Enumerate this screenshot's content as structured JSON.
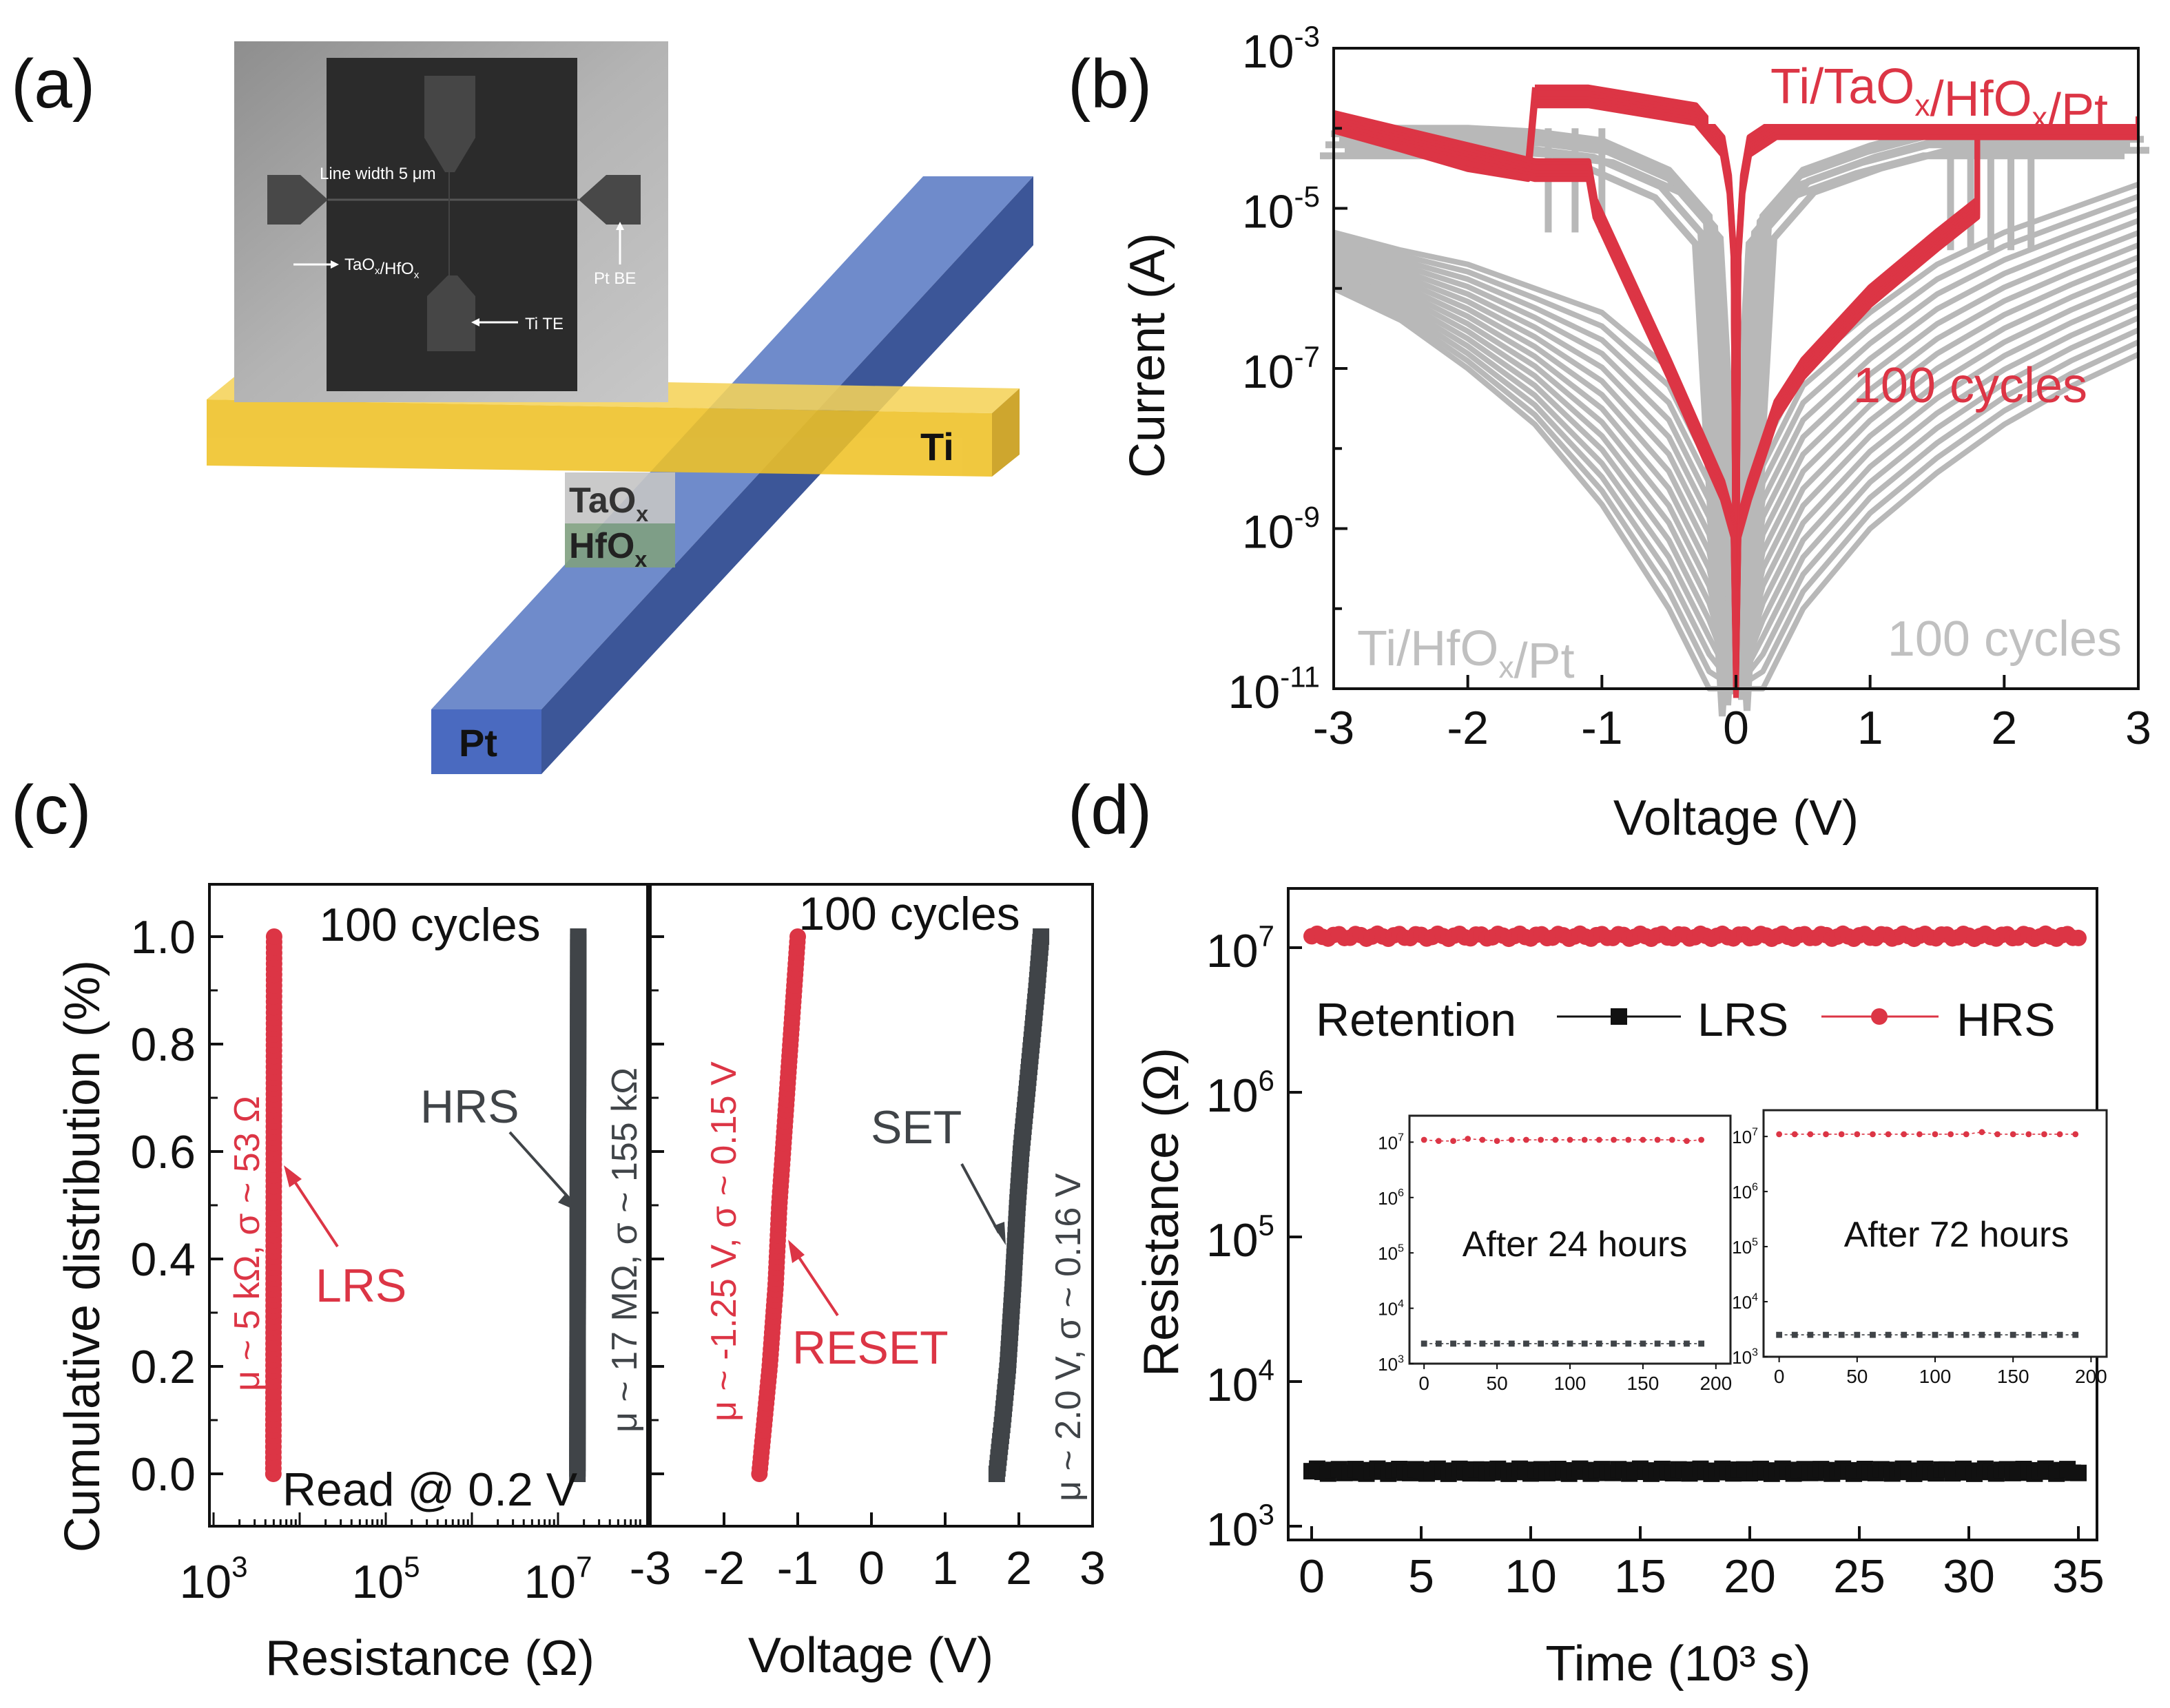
{
  "panel_labels": {
    "a": "(a)",
    "b": "(b)",
    "c": "(c)",
    "d": "(d)"
  },
  "panel_a": {
    "sem_inset": {
      "line_width": "Line width 5 μm",
      "stack": "TaOx/HfOx",
      "bottom_electrode": "Pt BE",
      "top_electrode": "Ti TE"
    },
    "device": {
      "top_electrode": "Ti",
      "bottom_electrode": "Pt",
      "layer_top": "TaOx",
      "layer_bottom": "HfOx"
    },
    "colors": {
      "ti": "#f0c020",
      "pt": "#4a6ac0",
      "taox": "#c4c4c4",
      "hfox": "#7fa07f"
    }
  },
  "colors": {
    "red": "#dc3545",
    "gray": "#b8b8b8",
    "dark": "#404448",
    "black": "#111111"
  },
  "chart_data": [
    {
      "id": "b",
      "type": "line",
      "xlabel": "Voltage (V)",
      "ylabel": "Current (A)",
      "xlim": [
        -3,
        3
      ],
      "ylim": [
        1e-11,
        0.001
      ],
      "yscale": "log",
      "xticks": [
        -3,
        -2,
        -1,
        0,
        1,
        2,
        3
      ],
      "yticks_exponents": [
        -3,
        -5,
        -7,
        -9,
        -11
      ],
      "annotations": {
        "red_device": "Ti/TaOx/HfOx/Pt",
        "red_cycles": "100 cycles",
        "gray_device": "Ti/HfOx/Pt",
        "gray_cycles": "100 cycles"
      },
      "series": [
        {
          "group": "Ti/TaOx/HfOx/Pt",
          "color": "red",
          "x": [
            0,
            0.02,
            0.1,
            0.3,
            0.5,
            1.0,
            1.5,
            1.8,
            1.8,
            2.0,
            3.0
          ],
          "y": [
            1e-11,
            1e-09,
            3e-09,
            3e-08,
            1e-07,
            8e-07,
            4e-06,
            1e-05,
            0.0001,
            0.0001,
            0.0001
          ]
        },
        {
          "group": "Ti/TaOx/HfOx/Pt",
          "color": "red",
          "x": [
            3.0,
            0.3,
            0.1,
            0.05,
            0.02,
            0
          ],
          "y": [
            0.0001,
            0.0001,
            6e-05,
            2e-05,
            3e-06,
            1e-11
          ]
        },
        {
          "group": "Ti/TaOx/HfOx/Pt",
          "color": "red",
          "x": [
            0,
            -0.02,
            -0.05,
            -0.1,
            -0.3,
            -1.1,
            -1.5
          ],
          "y": [
            1e-11,
            3e-06,
            2e-05,
            6e-05,
            0.00015,
            0.00025,
            0.00025
          ]
        },
        {
          "group": "Ti/TaOx/HfOx/Pt",
          "color": "red",
          "x": [
            -1.5,
            -1.55,
            -2.0,
            -2.5,
            -3.0
          ],
          "y": [
            0.00025,
            3e-05,
            4e-05,
            7e-05,
            0.00012
          ]
        },
        {
          "group": "Ti/TaOx/HfOx/Pt",
          "color": "red",
          "x": [
            -3.0,
            -1.5,
            -1.1,
            -1.05,
            -0.5,
            -0.1,
            -0.02,
            0
          ],
          "y": [
            0.00012,
            3e-05,
            3e-05,
            1e-05,
            1e-07,
            3e-09,
            1e-09,
            1e-11
          ]
        },
        {
          "group": "Ti/HfOx/Pt",
          "color": "gray",
          "x": [
            -3,
            -2.5,
            -2,
            -1.5,
            -1,
            -0.5,
            -0.2,
            0,
            0.2,
            0.5,
            1,
            1.5,
            2,
            2.5,
            3
          ],
          "y": [
            0.0001,
            0.0001,
            0.0001,
            9e-05,
            7e-05,
            3e-05,
            8e-06,
            1e-11,
            8e-06,
            3e-05,
            6e-05,
            0.0001,
            0.0001,
            0.0001,
            0.0001
          ]
        },
        {
          "group": "Ti/HfOx/Pt",
          "color": "gray",
          "x": [
            -3,
            -2.5,
            -2,
            -1.5,
            -1,
            -0.5,
            -0.2,
            0,
            0.2,
            0.5,
            1,
            1.5,
            2,
            2.5,
            3
          ],
          "y": [
            5e-06,
            3e-06,
            2e-06,
            1e-06,
            5e-07,
            1e-07,
            1e-08,
            1e-11,
            1e-08,
            1e-07,
            5e-07,
            2e-06,
            5e-06,
            1e-05,
            2e-05
          ]
        },
        {
          "group": "Ti/HfOx/Pt",
          "color": "gray",
          "x": [
            -3,
            -2.5,
            -2,
            -1.5,
            -1,
            -0.5,
            -0.2,
            0,
            0.2,
            0.5,
            1,
            1.5,
            2,
            2.5,
            3
          ],
          "y": [
            1e-06,
            4e-07,
            1e-07,
            2e-08,
            2e-09,
            1e-10,
            1e-11,
            1e-11,
            1e-11,
            1e-10,
            1e-09,
            5e-09,
            2e-08,
            6e-08,
            1.5e-07
          ]
        }
      ]
    },
    {
      "id": "c-left",
      "type": "scatter",
      "xlabel": "Resistance (Ω)",
      "ylabel": "Cumulative distribution (%)",
      "xscale": "log",
      "xlim": [
        1000.0,
        100000000.0
      ],
      "ylim": [
        -0.1,
        1.1
      ],
      "xticks_exponents": [
        3,
        5,
        7
      ],
      "yticks": [
        "0.0",
        "0.2",
        "0.4",
        "0.6",
        "0.8",
        "1.0"
      ],
      "annotations": {
        "cycles": "100 cycles",
        "read": "Read @ 0.2 V",
        "lrs": "LRS",
        "hrs": "HRS",
        "lrs_stats": "μ ~ 5 kΩ,  σ ~ 53 Ω",
        "hrs_stats": "μ ~ 17 MΩ,  σ ~ 155 kΩ"
      },
      "series": [
        {
          "name": "LRS",
          "color": "red",
          "x": [
            4950,
            5050
          ],
          "y": [
            0,
            1
          ]
        },
        {
          "name": "HRS",
          "color": "dark",
          "x": [
            16800000,
            17200000
          ],
          "y": [
            0,
            1
          ]
        }
      ]
    },
    {
      "id": "c-right",
      "type": "scatter",
      "xlabel": "Voltage (V)",
      "xlim": [
        -3,
        3
      ],
      "ylim": [
        -0.1,
        1.1
      ],
      "xticks": [
        -3,
        -2,
        -1,
        0,
        1,
        2,
        3
      ],
      "annotations": {
        "cycles": "100 cycles",
        "reset": "RESET",
        "set": "SET",
        "reset_stats": "μ ~ -1.25 V, σ ~ 0.15 V",
        "set_stats": "μ ~ 2.0 V, σ ~ 0.16 V"
      },
      "series": [
        {
          "name": "RESET",
          "color": "red",
          "x": [
            -1.52,
            -1.45,
            -1.38,
            -1.3,
            -1.25,
            -1.2,
            -1.15,
            -1.1,
            -1.05,
            -1.0
          ],
          "y": [
            0,
            0.1,
            0.2,
            0.35,
            0.5,
            0.6,
            0.7,
            0.8,
            0.9,
            1.0
          ]
        },
        {
          "name": "SET",
          "color": "dark",
          "x": [
            1.7,
            1.78,
            1.85,
            1.92,
            1.98,
            2.03,
            2.1,
            2.17,
            2.24,
            2.3
          ],
          "y": [
            0,
            0.1,
            0.2,
            0.35,
            0.5,
            0.6,
            0.7,
            0.8,
            0.9,
            1.0
          ]
        }
      ]
    },
    {
      "id": "d",
      "type": "line",
      "xlabel": "Time (10³ s)",
      "ylabel": "Resistance (Ω)",
      "xlim": [
        0,
        35
      ],
      "ylim": [
        1000.0,
        30000000.0
      ],
      "yscale": "log",
      "xticks": [
        0,
        5,
        10,
        15,
        20,
        25,
        30,
        35
      ],
      "yticks_exponents": [
        3,
        4,
        5,
        6,
        7
      ],
      "legend": {
        "title": "Retention",
        "entries": [
          "LRS",
          "HRS"
        ],
        "placement": "top"
      },
      "series": [
        {
          "name": "LRS",
          "color": "black",
          "marker": "square",
          "x": [
            0,
            35
          ],
          "y": [
            2400,
            2400
          ]
        },
        {
          "name": "HRS",
          "color": "red",
          "marker": "circle",
          "x": [
            0,
            35
          ],
          "y": [
            12000000,
            12000000
          ]
        }
      ]
    },
    {
      "id": "d-inset-24h",
      "type": "line",
      "title": "After 24 hours",
      "xlim": [
        -10,
        210
      ],
      "ylim": [
        1000.0,
        30000000.0
      ],
      "yscale": "log",
      "xticks": [
        0,
        50,
        100,
        150,
        200
      ],
      "yticks_exponents": [
        3,
        4,
        5,
        6,
        7
      ],
      "series": [
        {
          "name": "HRS",
          "color": "red",
          "marker": "circle",
          "x": [
            0,
            10,
            20,
            30,
            40,
            50,
            60,
            70,
            80,
            90,
            100,
            110,
            120,
            130,
            140,
            150,
            160,
            170,
            180,
            190
          ],
          "y": [
            11000000.0,
            10500000.0,
            10500000.0,
            11500000.0,
            11000000.0,
            10500000.0,
            11000000.0,
            11000000.0,
            11000000.0,
            11000000.0,
            11000000.0,
            11000000.0,
            11000000.0,
            11000000.0,
            11000000.0,
            11000000.0,
            11000000.0,
            11000000.0,
            10500000.0,
            11000000.0
          ]
        },
        {
          "name": "LRS",
          "color": "dark",
          "marker": "square",
          "x": [
            0,
            10,
            20,
            30,
            40,
            50,
            60,
            70,
            80,
            90,
            100,
            110,
            120,
            130,
            140,
            150,
            160,
            170,
            180,
            190
          ],
          "y": [
            2300,
            2300,
            2300,
            2300,
            2300,
            2300,
            2300,
            2300,
            2300,
            2300,
            2300,
            2300,
            2300,
            2300,
            2300,
            2300,
            2300,
            2300,
            2300,
            2300
          ]
        }
      ]
    },
    {
      "id": "d-inset-72h",
      "type": "line",
      "title": "After 72 hours",
      "xlim": [
        -10,
        210
      ],
      "ylim": [
        1000.0,
        30000000.0
      ],
      "yscale": "log",
      "xticks": [
        0,
        50,
        100,
        150,
        200
      ],
      "yticks_exponents": [
        3,
        4,
        5,
        6,
        7
      ],
      "series": [
        {
          "name": "HRS",
          "color": "red",
          "marker": "circle",
          "x": [
            0,
            10,
            20,
            30,
            40,
            50,
            60,
            70,
            80,
            90,
            100,
            110,
            120,
            130,
            140,
            150,
            160,
            170,
            180,
            190
          ],
          "y": [
            11000000.0,
            11000000.0,
            11000000.0,
            11000000.0,
            11000000.0,
            11000000.0,
            11000000.0,
            11000000.0,
            11000000.0,
            11000000.0,
            11000000.0,
            11000000.0,
            11000000.0,
            12000000.0,
            11000000.0,
            11000000.0,
            11000000.0,
            11000000.0,
            11000000.0,
            11000000.0
          ]
        },
        {
          "name": "LRS",
          "color": "dark",
          "marker": "square",
          "x": [
            0,
            10,
            20,
            30,
            40,
            50,
            60,
            70,
            80,
            90,
            100,
            110,
            120,
            130,
            140,
            150,
            160,
            170,
            180,
            190
          ],
          "y": [
            2500,
            2500,
            2500,
            2500,
            2500,
            2500,
            2500,
            2500,
            2500,
            2500,
            2500,
            2500,
            2500,
            2500,
            2500,
            2500,
            2500,
            2500,
            2500,
            2500
          ]
        }
      ]
    }
  ]
}
